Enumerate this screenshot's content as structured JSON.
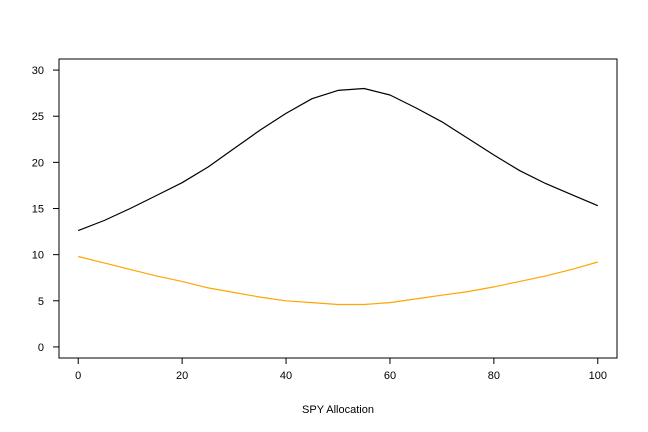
{
  "chart_data": {
    "type": "line",
    "title": "",
    "xlabel": "SPY Allocation",
    "ylabel": "",
    "xlim": [
      -3.7,
      103.7
    ],
    "ylim": [
      -1.2,
      31.2
    ],
    "xticks": [
      0,
      20,
      40,
      60,
      80,
      100
    ],
    "yticks": [
      0,
      5,
      10,
      15,
      20,
      25,
      30
    ],
    "grid": false,
    "legend": "none",
    "x": [
      0,
      5,
      10,
      15,
      20,
      25,
      30,
      35,
      40,
      45,
      50,
      55,
      60,
      65,
      70,
      75,
      80,
      85,
      90,
      95,
      100
    ],
    "series": [
      {
        "color": "#000000",
        "values": [
          12.6,
          13.7,
          15.0,
          16.4,
          17.8,
          19.5,
          21.5,
          23.5,
          25.3,
          26.9,
          27.8,
          28.0,
          27.3,
          25.9,
          24.4,
          22.6,
          20.8,
          19.1,
          17.7,
          16.5,
          15.3
        ]
      },
      {
        "color": "#FFA500",
        "values": [
          9.8,
          9.1,
          8.4,
          7.7,
          7.1,
          6.4,
          5.9,
          5.4,
          5.0,
          4.8,
          4.6,
          4.6,
          4.8,
          5.2,
          5.6,
          6.0,
          6.5,
          7.1,
          7.7,
          8.4,
          9.2
        ]
      }
    ]
  }
}
